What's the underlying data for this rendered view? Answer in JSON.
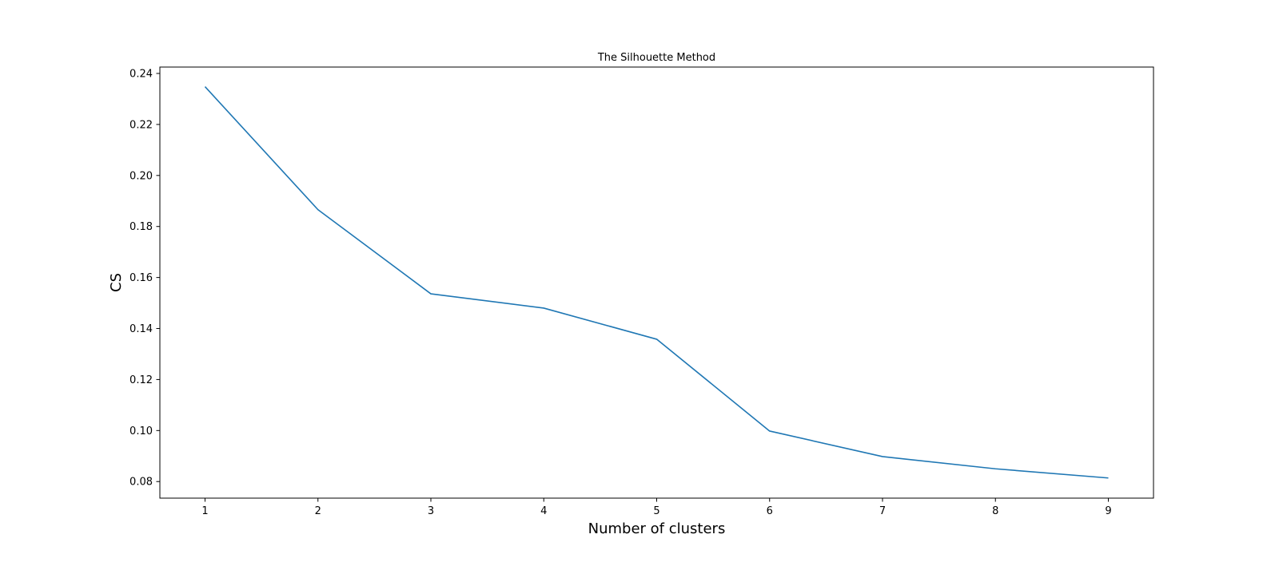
{
  "chart_data": {
    "type": "line",
    "title": "The Silhouette Method",
    "xlabel": "Number of clusters",
    "ylabel": "CS",
    "x": [
      1,
      2,
      3,
      4,
      5,
      6,
      7,
      8,
      9
    ],
    "series": [
      {
        "values": [
          0.2348,
          0.1866,
          0.1536,
          0.148,
          0.1358,
          0.0998,
          0.0898,
          0.085,
          0.0814
        ],
        "color": "#1f77b4"
      }
    ],
    "xlim": [
      0.6,
      9.4
    ],
    "ylim": [
      0.0735,
      0.2425
    ],
    "xticks": [
      1,
      2,
      3,
      4,
      5,
      6,
      7,
      8,
      9
    ],
    "xtick_labels": [
      "1",
      "2",
      "3",
      "4",
      "5",
      "6",
      "7",
      "8",
      "9"
    ],
    "yticks": [
      0.08,
      0.1,
      0.12,
      0.14,
      0.16,
      0.18,
      0.2,
      0.22,
      0.24
    ],
    "ytick_labels": [
      "0.08",
      "0.10",
      "0.12",
      "0.14",
      "0.16",
      "0.18",
      "0.20",
      "0.22",
      "0.24"
    ],
    "grid": false,
    "legend": false
  }
}
